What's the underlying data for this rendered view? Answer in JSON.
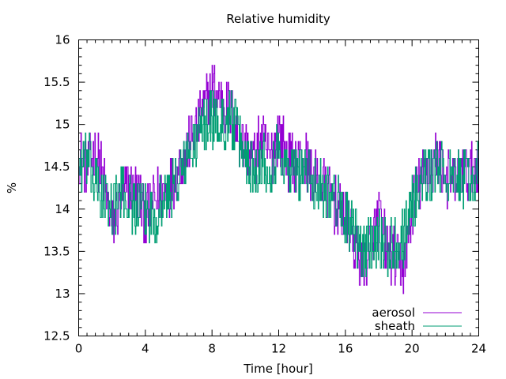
{
  "chart_data": {
    "type": "line",
    "title": "Relative humidity",
    "xlabel": "Time [hour]",
    "ylabel": "%",
    "xlim": [
      0,
      24
    ],
    "ylim": [
      12.5,
      16
    ],
    "x_ticks": [
      0,
      4,
      8,
      12,
      16,
      20,
      24
    ],
    "y_ticks": [
      12.5,
      13,
      13.5,
      14,
      14.5,
      15,
      15.5,
      16
    ],
    "y_tick_labels": [
      "12.5",
      "13",
      "13.5",
      "14",
      "14.5",
      "15",
      "15.5",
      "16"
    ],
    "grid": false,
    "legend_position": "bottom-right",
    "series": [
      {
        "name": "aerosol",
        "color": "#9400d3",
        "x": [
          0,
          0.5,
          1,
          1.5,
          2,
          2.5,
          3,
          3.5,
          4,
          4.5,
          5,
          5.5,
          6,
          6.5,
          7,
          7.5,
          8,
          8.5,
          9,
          9.5,
          10,
          10.5,
          11,
          11.5,
          12,
          12.5,
          13,
          13.5,
          14,
          14.5,
          15,
          15.5,
          16,
          16.5,
          17,
          17.5,
          18,
          18.5,
          19,
          19.5,
          20,
          20.5,
          21,
          21.5,
          22,
          22.5,
          23,
          23.5,
          24
        ],
        "y": [
          14.6,
          14.5,
          14.7,
          14.3,
          13.8,
          14.1,
          14.3,
          14.2,
          13.9,
          14.1,
          14.2,
          14.3,
          14.5,
          14.7,
          14.9,
          15.2,
          15.4,
          15.3,
          15.2,
          14.9,
          14.7,
          14.6,
          14.8,
          14.6,
          14.9,
          14.6,
          14.5,
          14.6,
          14.4,
          14.3,
          14.2,
          14.0,
          13.9,
          13.6,
          13.3,
          13.6,
          13.9,
          13.5,
          13.4,
          13.3,
          14.0,
          14.3,
          14.5,
          14.6,
          14.4,
          14.3,
          14.5,
          14.4,
          14.6
        ]
      },
      {
        "name": "sheath",
        "color": "#009e73",
        "x": [
          0,
          0.5,
          1,
          1.5,
          2,
          2.5,
          3,
          3.5,
          4,
          4.5,
          5,
          5.5,
          6,
          6.5,
          7,
          7.5,
          8,
          8.5,
          9,
          9.5,
          10,
          10.5,
          11,
          11.5,
          12,
          12.5,
          13,
          13.5,
          14,
          14.5,
          15,
          15.5,
          16,
          16.5,
          17,
          17.5,
          18,
          18.5,
          19,
          19.5,
          20,
          20.5,
          21,
          21.5,
          22,
          22.5,
          23,
          23.5,
          24
        ],
        "y": [
          14.5,
          14.6,
          14.3,
          14.1,
          14.0,
          14.2,
          14.1,
          14.0,
          14.0,
          13.9,
          14.1,
          14.2,
          14.4,
          14.6,
          14.8,
          15.0,
          15.1,
          15.0,
          15.1,
          14.9,
          14.6,
          14.5,
          14.6,
          14.5,
          14.7,
          14.5,
          14.4,
          14.5,
          14.3,
          14.3,
          14.2,
          14.1,
          13.9,
          13.7,
          13.5,
          13.6,
          13.7,
          13.5,
          13.6,
          13.7,
          14.1,
          14.3,
          14.4,
          14.5,
          14.4,
          14.3,
          14.4,
          14.3,
          14.5
        ]
      }
    ]
  }
}
